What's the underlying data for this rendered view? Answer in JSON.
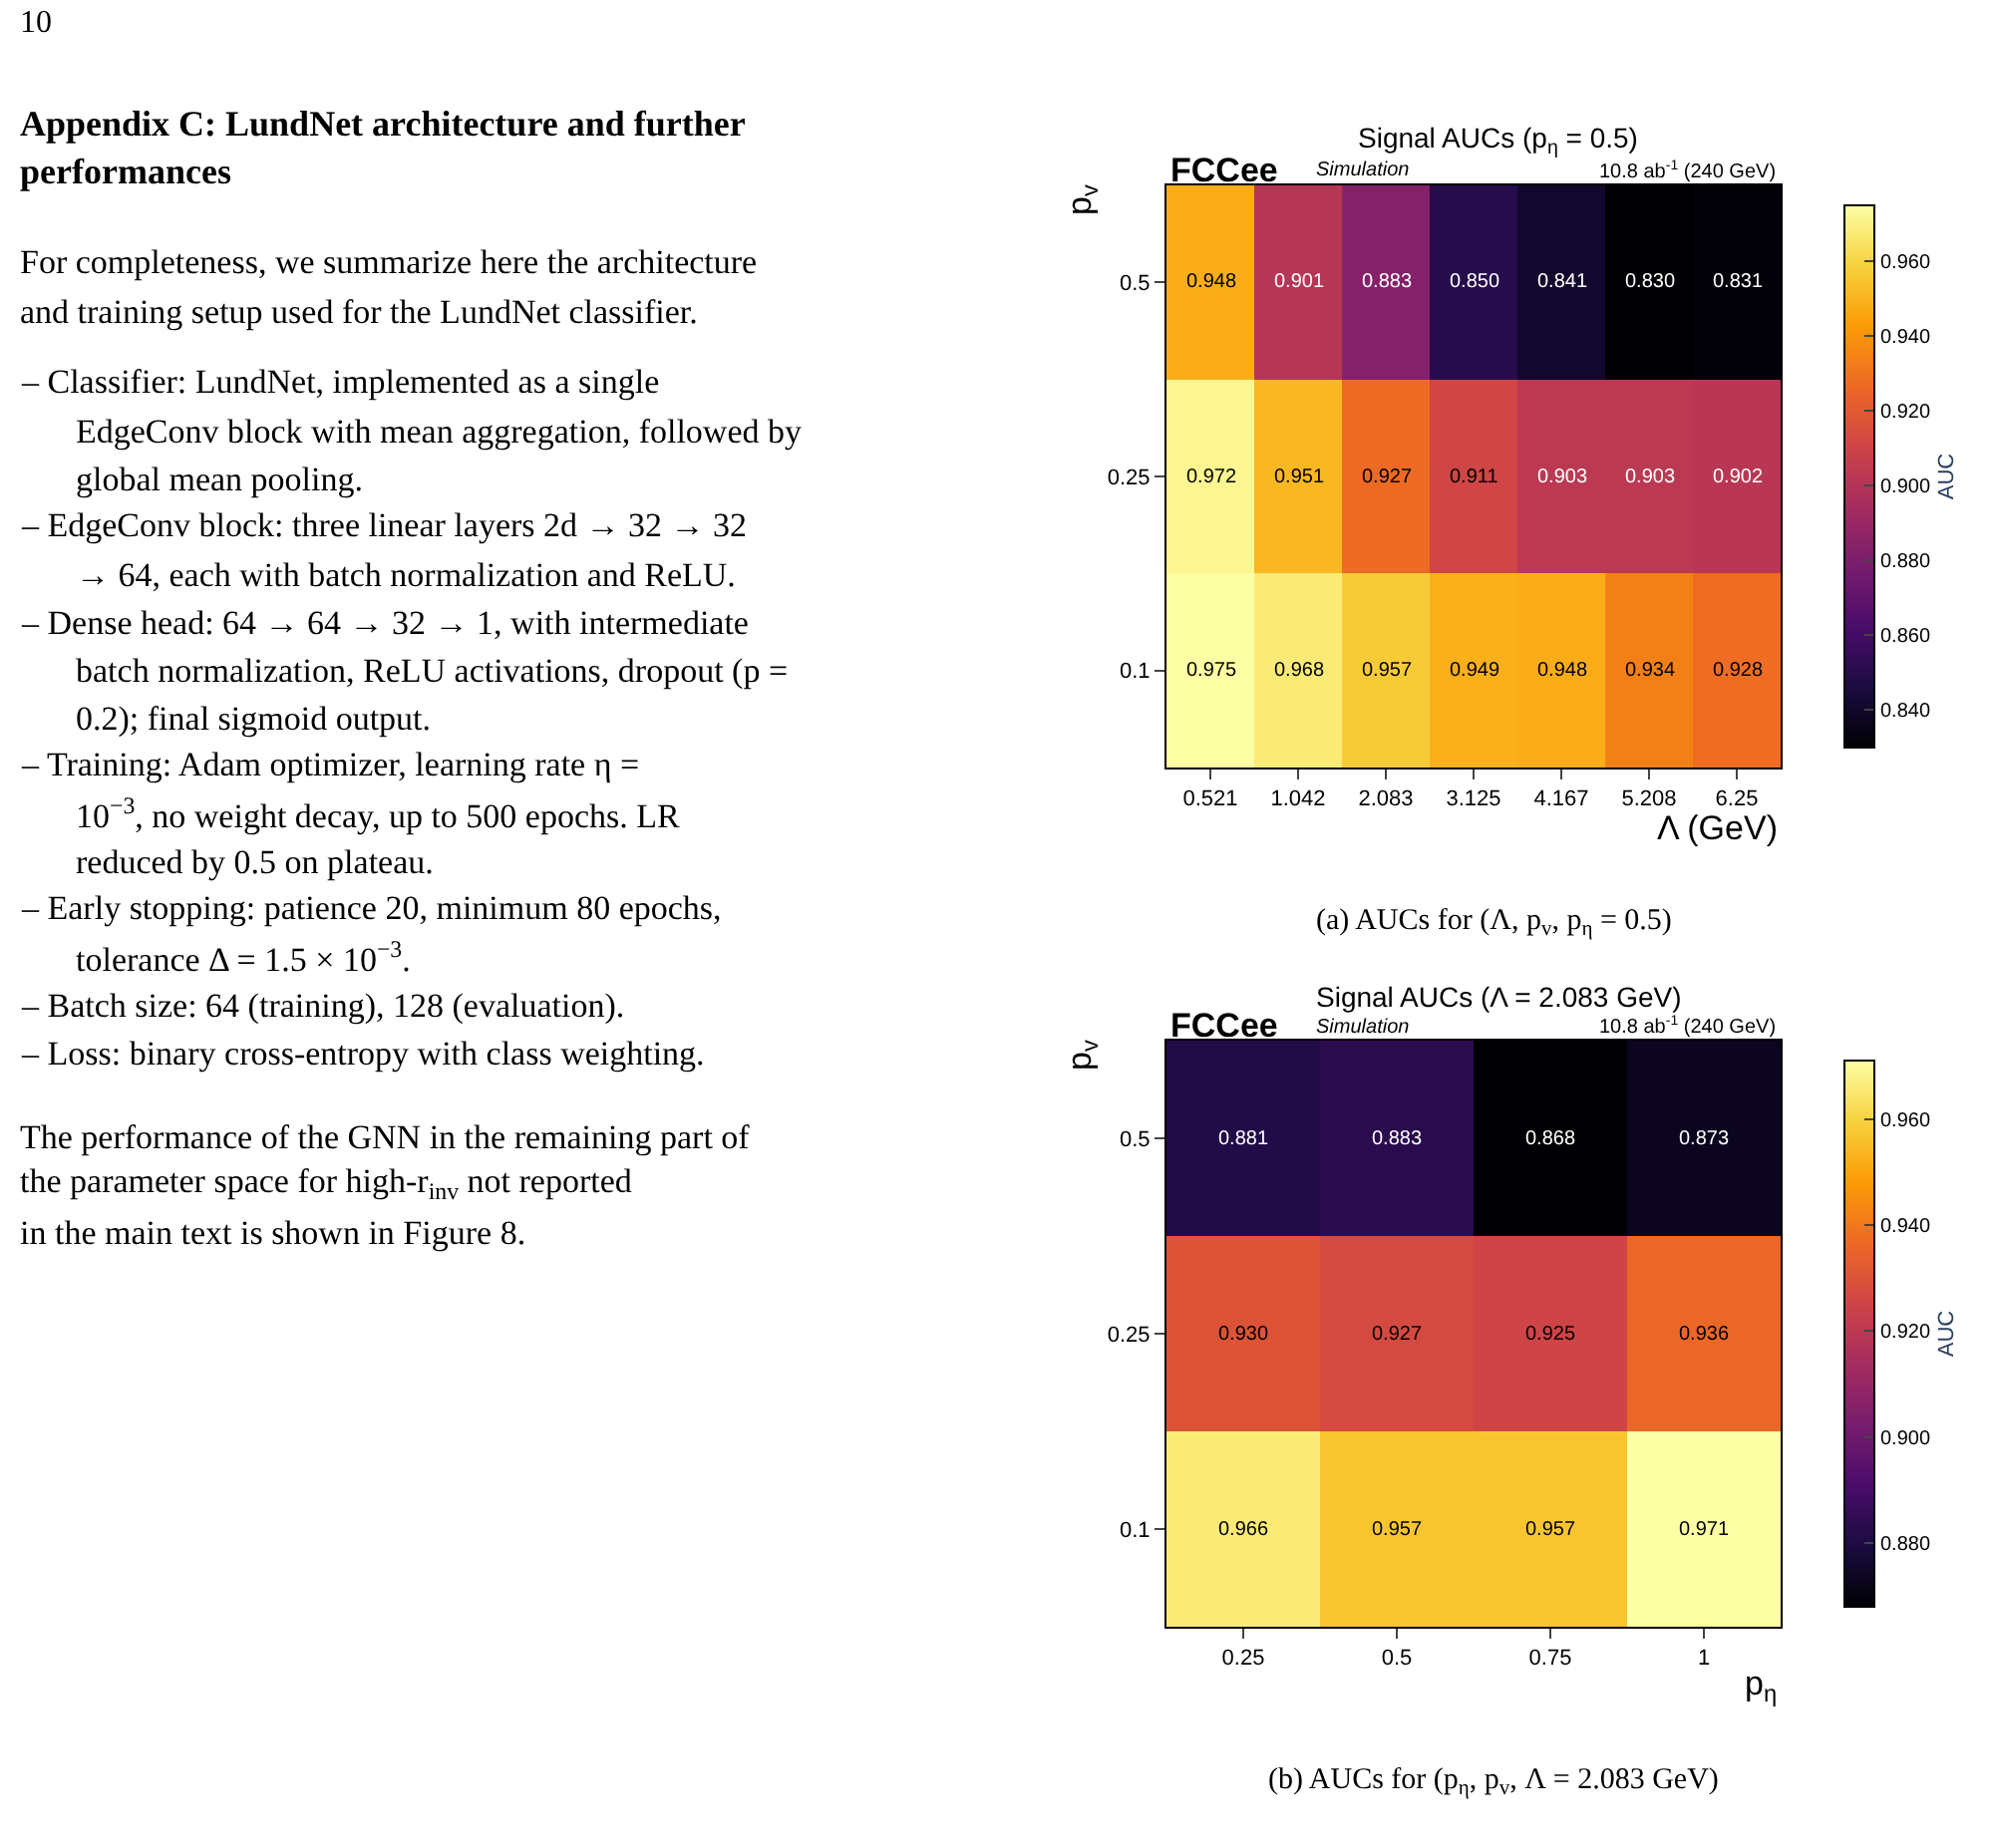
{
  "chart_data": [
    {
      "type": "other",
      "title": "Appendix C: LundNet architecture and further performances",
      "annotations": [
        "10",
        "For completeness, we summarize here the architecture and training setup used for the LundNet classifier.",
        "– Classifier: LundNet, implemented as a single EdgeConv block with mean aggregation, followed by global mean pooling.",
        "– EdgeConv block: three linear layers 2d → 32 → 32 → 64, each with batch normalization and ReLU.",
        "– Dense head: 64 → 64 → 32 → 1, with intermediate batch normalization, ReLU activations, dropout (p = 0.2); final sigmoid output.",
        "– Training: Adam optimizer, learning rate η = 10$^{−3}$, no weight decay, up to 500 epochs. LR reduced by 0.5 on plateau.",
        "– Early stopping: patience 20, minimum 80 epochs, tolerance Δ = 1.5 × 10$^{−3}$.",
        "– Batch size: 64 (training), 128 (evaluation).",
        "– Loss: binary cross-entropy with class weighting.",
        "The performance of the GNN in the remaining part of the parameter space for high-r$_{inv}$ not reported in the main text is shown in Figure 8."
      ]
    },
    {
      "type": "heatmap",
      "title": "Signal AUCs (p$_{η}$ = 0.5)",
      "xlabel": "Λ (GeV)",
      "ylabel": "p$_{v}$",
      "clabel": "AUC",
      "categories": [
        "0.521",
        "1.042",
        "2.083",
        "3.125",
        "4.167",
        "5.208",
        "6.25"
      ],
      "y_categories": [
        "0.5",
        "0.25",
        "0.1"
      ],
      "cells": [
        [
          0.948,
          0.901,
          0.883,
          0.85,
          0.841,
          0.83,
          0.831
        ],
        [
          0.972,
          0.951,
          0.927,
          0.911,
          0.903,
          0.903,
          0.902
        ],
        [
          0.975,
          0.968,
          0.957,
          0.949,
          0.948,
          0.934,
          0.928
        ]
      ],
      "cell_labels": [
        [
          "0.948",
          "0.901",
          "0.883",
          "0.850",
          "0.841",
          "0.830",
          "0.831"
        ],
        [
          "0.972",
          "0.951",
          "0.927",
          "0.911",
          "0.903",
          "0.903",
          "0.902"
        ],
        [
          "0.975",
          "0.968",
          "0.957",
          "0.949",
          "0.948",
          "0.934",
          "0.928"
        ]
      ],
      "clim": [
        0.83,
        0.975
      ],
      "cticks": [
        {
          "value": 0.84,
          "label": "0.840"
        },
        {
          "value": 0.86,
          "label": "0.860"
        },
        {
          "value": 0.88,
          "label": "0.880"
        },
        {
          "value": 0.9,
          "label": "0.900"
        },
        {
          "value": 0.92,
          "label": "0.920"
        },
        {
          "value": 0.94,
          "label": "0.940"
        },
        {
          "value": 0.96,
          "label": "0.960"
        }
      ],
      "annotations": [
        "FCCee",
        "Simulation",
        "10.8 ab$^{-1}$ (240 GeV)",
        "(a) AUCs for (Λ, p$_{v}$, p$_{η}$ = 0.5)"
      ]
    },
    {
      "type": "heatmap",
      "title": "Signal AUCs (Λ = 2.083 GeV)",
      "xlabel": "p$_{η}$",
      "ylabel": "p$_{v}$",
      "clabel": "AUC",
      "categories": [
        "0.25",
        "0.5",
        "0.75",
        "1"
      ],
      "y_categories": [
        "0.5",
        "0.25",
        "0.1"
      ],
      "cells": [
        [
          0.881,
          0.883,
          0.868,
          0.873
        ],
        [
          0.93,
          0.927,
          0.925,
          0.936
        ],
        [
          0.966,
          0.957,
          0.957,
          0.971
        ]
      ],
      "cell_labels": [
        [
          "0.881",
          "0.883",
          "0.868",
          "0.873"
        ],
        [
          "0.930",
          "0.927",
          "0.925",
          "0.936"
        ],
        [
          "0.966",
          "0.957",
          "0.957",
          "0.971"
        ]
      ],
      "clim": [
        0.868,
        0.971
      ],
      "cticks": [
        {
          "value": 0.88,
          "label": "0.880"
        },
        {
          "value": 0.9,
          "label": "0.900"
        },
        {
          "value": 0.92,
          "label": "0.920"
        },
        {
          "value": 0.94,
          "label": "0.940"
        },
        {
          "value": 0.96,
          "label": "0.960"
        }
      ],
      "annotations": [
        "FCCee",
        "Simulation",
        "10.8 ab$^{-1}$ (240 GeV)",
        "(b) AUCs for (p$_{η}$, p$_{v}$, Λ = 2.083 GeV)"
      ]
    }
  ]
}
